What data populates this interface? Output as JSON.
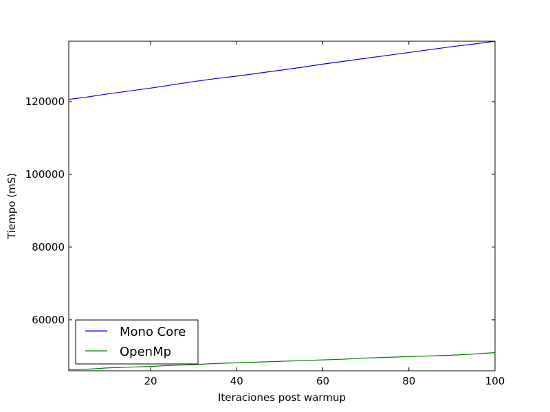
{
  "chart_data": {
    "type": "line",
    "title": "",
    "xlabel": "Iteraciones post warmup",
    "ylabel": "Tiempo (mS)",
    "xlim": [
      1,
      100
    ],
    "ylim": [
      46000,
      136600
    ],
    "xticks": [
      20,
      40,
      60,
      80,
      100
    ],
    "yticks": [
      60000,
      80000,
      100000,
      120000
    ],
    "grid": false,
    "legend_position": "lower-left",
    "series": [
      {
        "name": "Mono Core",
        "color": "#0000ff",
        "x": [
          1,
          5,
          10,
          15,
          20,
          25,
          30,
          35,
          40,
          45,
          50,
          55,
          60,
          65,
          70,
          75,
          80,
          85,
          90,
          95,
          100
        ],
        "y": [
          120600,
          121200,
          122100,
          122900,
          123700,
          124600,
          125500,
          126300,
          127000,
          127800,
          128600,
          129400,
          130300,
          131100,
          131900,
          132700,
          133500,
          134300,
          135100,
          135800,
          136600
        ]
      },
      {
        "name": "OpenMp",
        "color": "#008000",
        "x": [
          1,
          5,
          10,
          15,
          20,
          25,
          30,
          35,
          40,
          45,
          50,
          55,
          60,
          65,
          70,
          75,
          80,
          85,
          90,
          95,
          100
        ],
        "y": [
          46300,
          46400,
          46800,
          47000,
          47200,
          47500,
          47700,
          48000,
          48200,
          48400,
          48600,
          48800,
          49000,
          49200,
          49500,
          49700,
          49900,
          50100,
          50300,
          50600,
          51000
        ]
      }
    ]
  }
}
